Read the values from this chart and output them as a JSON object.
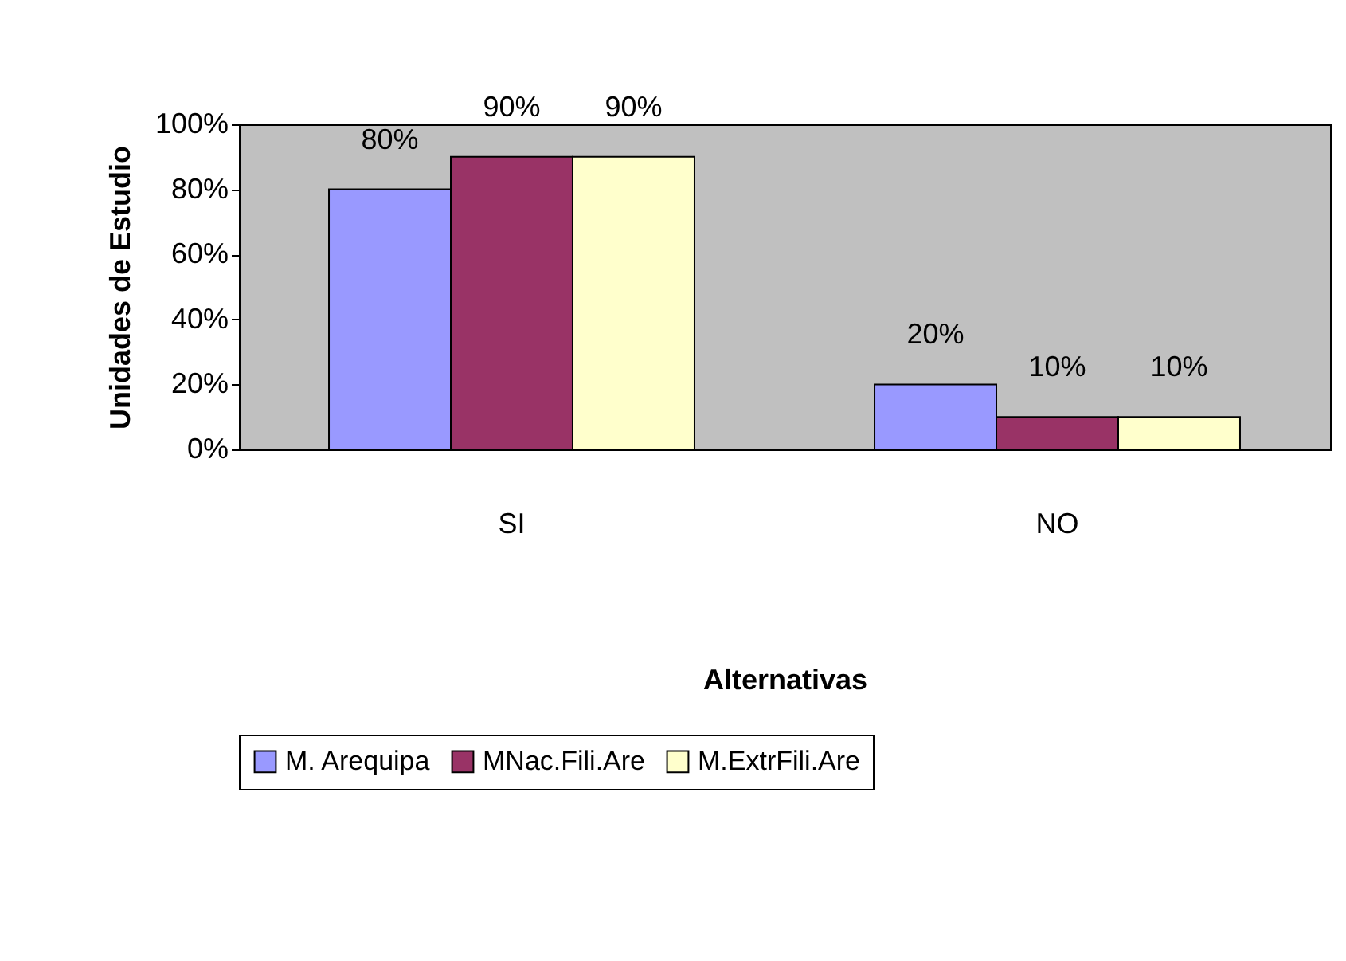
{
  "chart_data": {
    "type": "bar",
    "xlabel": "Alternativas",
    "ylabel": "Unidades de Estudio",
    "categories": [
      "SI",
      "NO"
    ],
    "series": [
      {
        "name": "M. Arequipa",
        "color": "#9999ff",
        "values": [
          80,
          20
        ],
        "value_labels": [
          "80%",
          "20%"
        ]
      },
      {
        "name": "MNac.Fili.Are",
        "color": "#993366",
        "values": [
          90,
          10
        ],
        "value_labels": [
          "90%",
          "10%"
        ]
      },
      {
        "name": "M.ExtrFili.Are",
        "color": "#ffffcc",
        "values": [
          90,
          10
        ],
        "value_labels": [
          "90%",
          "10%"
        ]
      }
    ],
    "ylim": [
      0,
      100
    ],
    "yticks": [
      {
        "value": 0,
        "label": "0%"
      },
      {
        "value": 20,
        "label": "20%"
      },
      {
        "value": 40,
        "label": "40%"
      },
      {
        "value": 60,
        "label": "60%"
      },
      {
        "value": 80,
        "label": "80%"
      },
      {
        "value": 100,
        "label": "100%"
      }
    ],
    "legend": "bottom"
  }
}
